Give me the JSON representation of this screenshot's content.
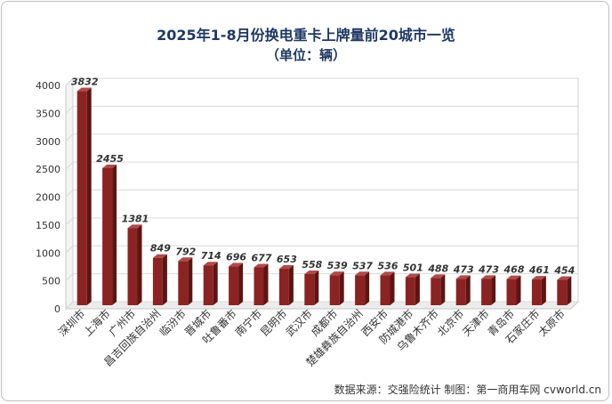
{
  "chart_data": {
    "type": "bar",
    "title": "2025年1-8月份换电重卡上牌量前20城市一览",
    "subtitle": "（单位：辆）",
    "categories": [
      "深圳市",
      "上海市",
      "广州市",
      "昌吉回族自治州",
      "临汾市",
      "晋城市",
      "吐鲁番市",
      "南宁市",
      "昆明市",
      "武汉市",
      "成都市",
      "楚雄彝族自治州",
      "西安市",
      "防城港市",
      "乌鲁木齐市",
      "北京市",
      "天津市",
      "青岛市",
      "石家庄市",
      "太原市"
    ],
    "values": [
      3832,
      2455,
      1381,
      849,
      792,
      714,
      696,
      677,
      653,
      558,
      539,
      537,
      536,
      501,
      488,
      473,
      473,
      468,
      461,
      454
    ],
    "ylim": [
      0,
      4000
    ],
    "yticks": [
      0,
      500,
      1000,
      1500,
      2000,
      2500,
      3000,
      3500,
      4000
    ],
    "grid": true,
    "bar_color": "#8b2323"
  },
  "source_text": "数据来源：交强险统计   制图：第一商用车网 cvworld.cn"
}
